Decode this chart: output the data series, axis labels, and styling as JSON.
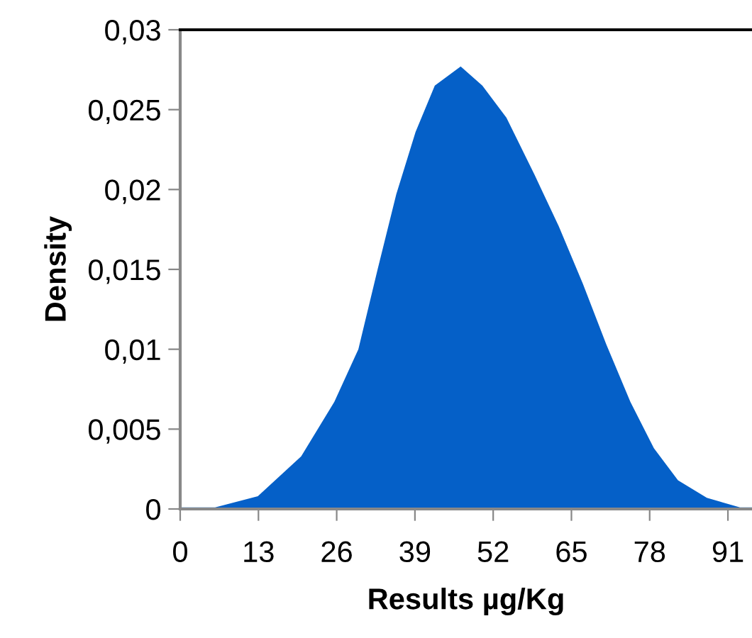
{
  "chart_data": {
    "type": "area",
    "xlabel": "Results µg/Kg",
    "ylabel": "Density",
    "x": [
      0,
      5.8,
      12.9,
      20.1,
      25.6,
      29.6,
      32.8,
      35.9,
      39.1,
      42.3,
      46.6,
      50.2,
      54.2,
      58.9,
      62.9,
      66.9,
      70.8,
      74.8,
      78.7,
      82.7,
      87.5,
      93.0,
      95.0
    ],
    "series": [
      {
        "color": "#0560c8",
        "values": [
          0.0001,
          0.0001,
          0.0008,
          0.0033,
          0.0067,
          0.01,
          0.015,
          0.0197,
          0.0236,
          0.0265,
          0.0277,
          0.0265,
          0.0245,
          0.0209,
          0.0177,
          0.0141,
          0.0103,
          0.0067,
          0.0038,
          0.0018,
          0.0007,
          0.0001,
          0.0001
        ]
      }
    ],
    "xlim": [
      0,
      95
    ],
    "xticks": [
      0,
      13,
      26,
      39,
      52,
      65,
      78,
      91
    ],
    "ylim": [
      0,
      0.03
    ],
    "yticks": [
      0,
      {
        "value": 0.005,
        "label": "0,005"
      },
      {
        "value": 0.01,
        "label": "0,01"
      },
      {
        "value": 0.015,
        "label": "0,015"
      },
      {
        "value": 0.02,
        "label": "0,02"
      },
      {
        "value": 0.025,
        "label": "0,025"
      },
      {
        "value": 0.03,
        "label": "0,03"
      }
    ],
    "grid": false,
    "legend": false
  }
}
